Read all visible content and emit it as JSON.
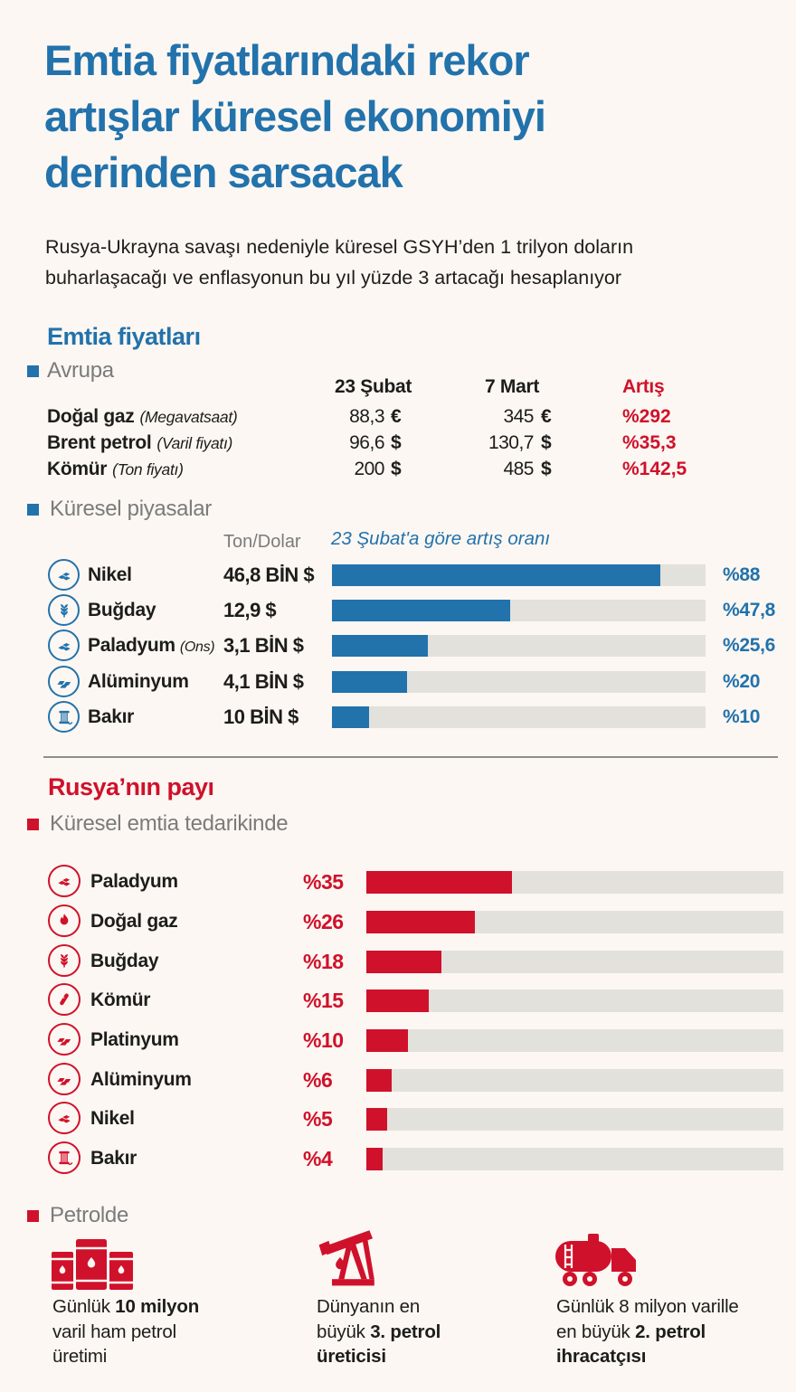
{
  "colors": {
    "background": "#FCF7F2",
    "accent_blue": "#2272AC",
    "accent_red": "#D0112B",
    "gray_text": "#7B7B7B",
    "dark_text": "#1D1D1B",
    "bar_track": "#E2E1DC",
    "divider": "#8E8E8E"
  },
  "header": {
    "title_lines": [
      "Emtia fiyatlarındaki rekor",
      "artışlar küresel ekonomiyi",
      "derinden sarsacak"
    ],
    "subtitle_lines": [
      "Rusya-Ukrayna savaşı nedeniyle küresel GSYH’den 1 trilyon doların",
      "buharlaşacağı ve enflasyonun bu yıl yüzde 3 artacağı hesaplanıyor"
    ]
  },
  "prices": {
    "heading": "Emtia fiyatları",
    "region": "Avrupa",
    "col_headers": [
      "23 Şubat",
      "7 Mart",
      "Artış"
    ],
    "rows": [
      {
        "label": "Doğal gaz",
        "note": "(Megavatsaat)",
        "v1": "88,3",
        "s1": "€",
        "v2": "345",
        "s2": "€",
        "change": "%292"
      },
      {
        "label": "Brent petrol",
        "note": "(Varil fiyatı)",
        "v1": "96,6",
        "s1": "$",
        "v2": "130,7",
        "s2": "$",
        "change": "%35,3"
      },
      {
        "label": "Kömür",
        "note": "(Ton fiyatı)",
        "v1": "200",
        "s1": "$",
        "v2": "485",
        "s2": "$",
        "change": "%142,5"
      }
    ]
  },
  "markets": {
    "heading": "Küresel piyasalar",
    "unit_label": "Ton/Dolar",
    "axis_note": "23 Şubat'a göre artış oranı",
    "rows": [
      {
        "icon": "nickel-nuggets",
        "label": "Nikel",
        "note": "",
        "value": "46,8 BİN $",
        "pct_label": "%88",
        "pct": 88
      },
      {
        "icon": "wheat",
        "label": "Buğday",
        "note": "",
        "value": "12,9 $",
        "pct_label": "%47,8",
        "pct": 47.8
      },
      {
        "icon": "palladium-nuggets",
        "label": "Paladyum",
        "note": "(Ons)",
        "value": "3,1 BİN $",
        "pct_label": "%25,6",
        "pct": 25.6
      },
      {
        "icon": "aluminium-ingots",
        "label": "Alüminyum",
        "note": "",
        "value": "4,1 BİN $",
        "pct_label": "%20",
        "pct": 20
      },
      {
        "icon": "copper-spool",
        "label": "Bakır",
        "note": "",
        "value": "10 BİN $",
        "pct_label": "%10",
        "pct": 10
      }
    ]
  },
  "russia": {
    "heading": "Rusya’nın payı",
    "subheading": "Küresel emtia tedarikinde",
    "rows": [
      {
        "icon": "palladium-nuggets",
        "label": "Paladyum",
        "pct_label": "%35",
        "pct": 35
      },
      {
        "icon": "gas-flame",
        "label": "Doğal gaz",
        "pct_label": "%26",
        "pct": 26
      },
      {
        "icon": "wheat",
        "label": "Buğday",
        "pct_label": "%18",
        "pct": 18
      },
      {
        "icon": "coal-lump",
        "label": "Kömür",
        "pct_label": "%15",
        "pct": 15
      },
      {
        "icon": "platinum-ingots",
        "label": "Platinyum",
        "pct_label": "%10",
        "pct": 10
      },
      {
        "icon": "aluminium-ingots",
        "label": "Alüminyum",
        "pct_label": "%6",
        "pct": 6
      },
      {
        "icon": "nickel-nuggets",
        "label": "Nikel",
        "pct_label": "%5",
        "pct": 5
      },
      {
        "icon": "copper-spool",
        "label": "Bakır",
        "pct_label": "%4",
        "pct": 4
      }
    ]
  },
  "petrol": {
    "subheading": "Petrolde",
    "items": [
      {
        "icon": "oil-barrels",
        "l1_regular": "Günlük ",
        "l1_bold": "10 milyon",
        "l2": "varil ham petrol",
        "l3": "üretimi"
      },
      {
        "icon": "oil-pump-jack",
        "l1": "Dünyanın en",
        "l2_regular": "büyük ",
        "l2_bold": "3. petrol",
        "l3_bold": "üreticisi"
      },
      {
        "icon": "tanker-truck",
        "l1": "Günlük 8 milyon varille",
        "l2_regular": "en büyük ",
        "l2_bold": "2. petrol",
        "l3_bold": "ihracatçısı"
      }
    ]
  },
  "chart_data": [
    {
      "type": "table",
      "title": "Emtia fiyatları — Avrupa",
      "columns": [
        "",
        "23 Şubat",
        "7 Mart",
        "Artış"
      ],
      "rows": [
        [
          "Doğal gaz (Megavatsaat)",
          "88,3 €",
          "345 €",
          "%292"
        ],
        [
          "Brent petrol (Varil fiyatı)",
          "96,6 $",
          "130,7 $",
          "%35,3"
        ],
        [
          "Kömür (Ton fiyatı)",
          "200 $",
          "485 $",
          "%142,5"
        ]
      ]
    },
    {
      "type": "bar",
      "orientation": "horizontal",
      "title": "Küresel piyasalar",
      "xlabel": "23 Şubat'a göre artış oranı (%)",
      "categories": [
        "Nikel",
        "Buğday",
        "Paladyum (Ons)",
        "Alüminyum",
        "Bakır"
      ],
      "values": [
        88,
        47.8,
        25.6,
        20,
        10
      ],
      "value_labels": [
        "%88",
        "%47,8",
        "%25,6",
        "%20",
        "%10"
      ],
      "ton_dolar_values": [
        "46,8 BİN $",
        "12,9 $",
        "3,1 BİN $",
        "4,1 BİN $",
        "10 BİN $"
      ],
      "xlim": [
        0,
        100
      ],
      "bar_color": "#2272AC",
      "grid": false,
      "legend": "none"
    },
    {
      "type": "bar",
      "orientation": "horizontal",
      "title": "Rusya'nın payı — Küresel emtia tedarikinde",
      "categories": [
        "Paladyum",
        "Doğal gaz",
        "Buğday",
        "Kömür",
        "Platinyum",
        "Alüminyum",
        "Nikel",
        "Bakır"
      ],
      "values": [
        35,
        26,
        18,
        15,
        10,
        6,
        5,
        4
      ],
      "value_labels": [
        "%35",
        "%26",
        "%18",
        "%15",
        "%10",
        "%6",
        "%5",
        "%4"
      ],
      "xlim": [
        0,
        100
      ],
      "bar_color": "#D0112B",
      "grid": false,
      "legend": "none"
    }
  ]
}
